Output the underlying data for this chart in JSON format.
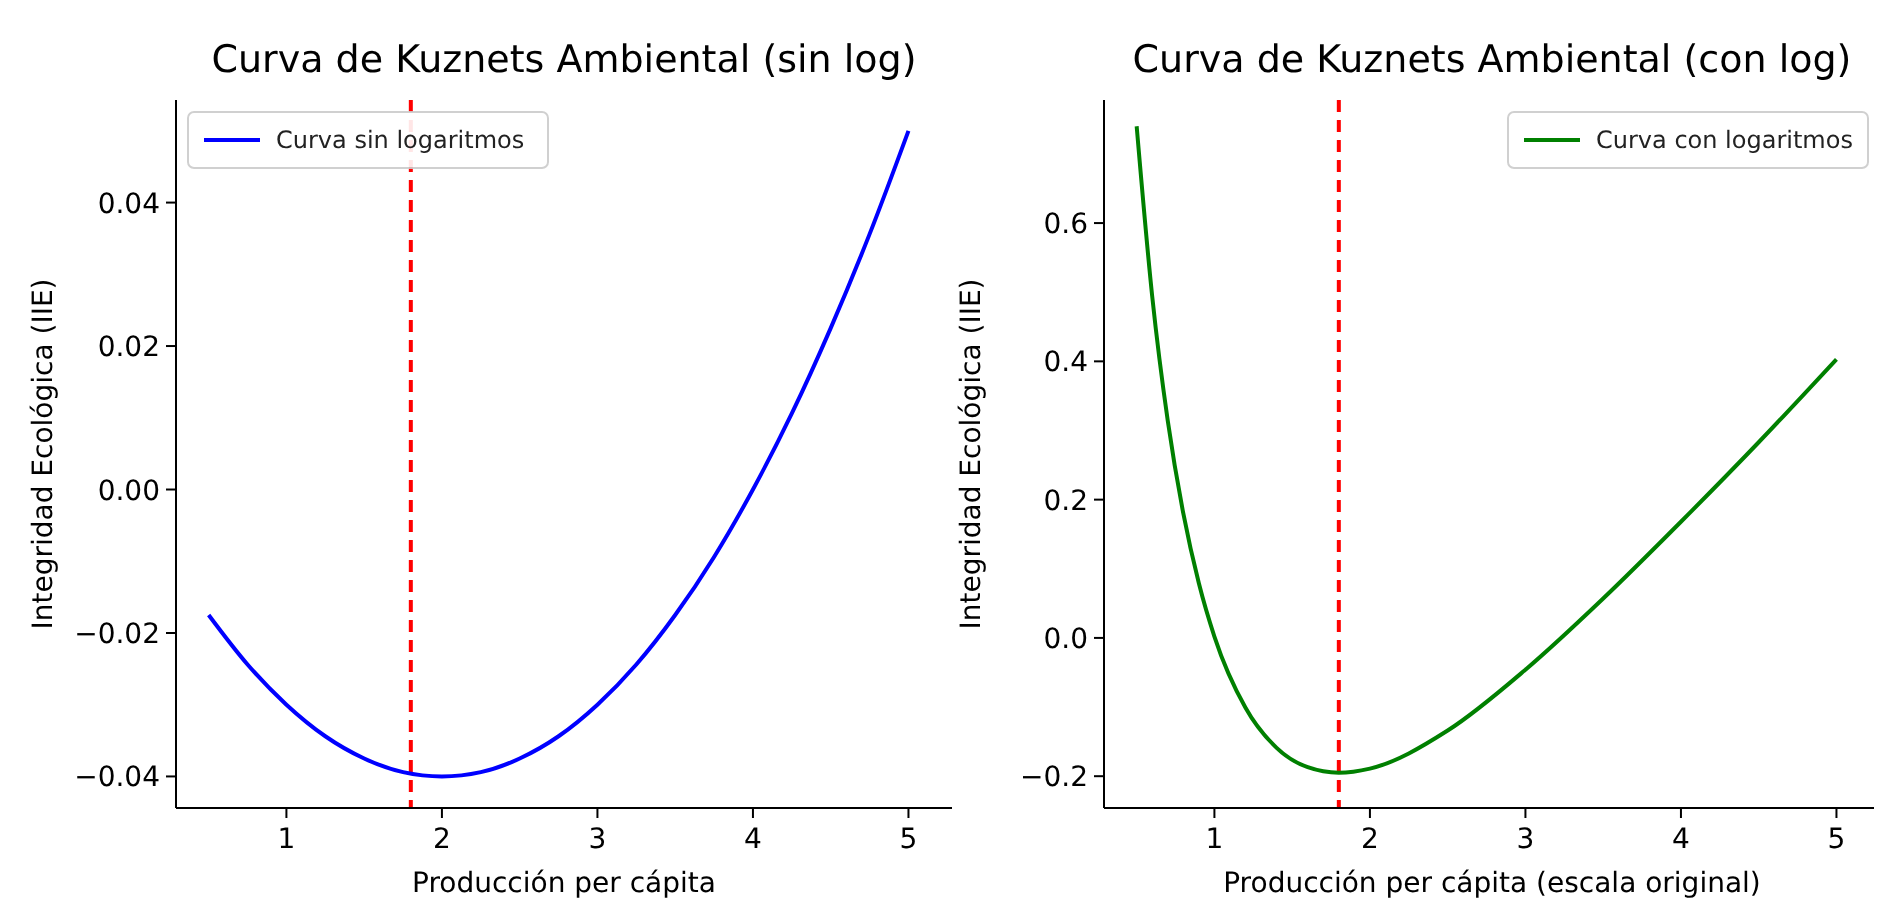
{
  "chart_data": [
    {
      "type": "line",
      "title": "Curva de Kuznets Ambiental (sin log)",
      "xlabel": "Producción per cápita",
      "ylabel": "Integridad Ecológica (IIE)",
      "x": [
        0.5,
        0.75,
        1,
        1.25,
        1.5,
        1.75,
        2,
        2.25,
        2.5,
        2.75,
        3,
        3.25,
        3.5,
        3.75,
        4,
        4.25,
        4.5,
        4.75,
        5
      ],
      "series": [
        {
          "name": "Curva sin logaritmos",
          "color": "#0000ff",
          "values": [
            -0.0175,
            -0.0244,
            -0.03,
            -0.0344,
            -0.0375,
            -0.0394,
            -0.04,
            -0.0394,
            -0.0375,
            -0.0344,
            -0.03,
            -0.0244,
            -0.0175,
            -0.0094,
            0,
            0.0106,
            0.0225,
            0.0356,
            0.05
          ]
        }
      ],
      "xlim": [
        0.29,
        5.28
      ],
      "xticks": [
        1,
        2,
        3,
        4,
        5
      ],
      "ylim": [
        -0.0444,
        0.0543
      ],
      "yticks": [
        {
          "value": -0.04,
          "label": "−0.04"
        },
        {
          "value": -0.02,
          "label": "−0.02"
        },
        {
          "value": 0,
          "label": "0.00"
        },
        {
          "value": 0.02,
          "label": "0.02"
        },
        {
          "value": 0.04,
          "label": "0.04"
        }
      ],
      "ref_lines": [
        {
          "axis": "x",
          "value": 1.8,
          "color": "#ff0000",
          "line_style": "dashed"
        }
      ],
      "legend": "top left",
      "grid": false,
      "line_style": "solid"
    },
    {
      "type": "line",
      "title": "Curva de Kuznets Ambiental (con log)",
      "xlabel": "Producción per cápita (escala original)",
      "ylabel": "Integridad Ecológica (IIE)",
      "x": [
        0.5,
        0.6,
        0.7,
        0.8,
        0.9,
        1,
        1.2,
        1.4,
        1.6,
        1.8,
        2,
        2.5,
        3,
        3.5,
        4,
        4.5,
        5
      ],
      "series": [
        {
          "name": "Curva con logaritmos",
          "color": "#008000",
          "values": [
            0.74,
            0.494,
            0.314,
            0.18,
            0.079,
            0.002,
            -0.101,
            -0.159,
            -0.187,
            -0.195,
            -0.189,
            -0.134,
            -0.046,
            0.057,
            0.168,
            0.283,
            0.403
          ]
        }
      ],
      "xlim": [
        0.29,
        5.28
      ],
      "xticks": [
        1,
        2,
        3,
        4,
        5
      ],
      "ylim": [
        -0.246,
        0.778
      ],
      "yticks": [
        {
          "value": -0.2,
          "label": "−0.2"
        },
        {
          "value": 0,
          "label": "0.0"
        },
        {
          "value": 0.2,
          "label": "0.2"
        },
        {
          "value": 0.4,
          "label": "0.4"
        },
        {
          "value": 0.6,
          "label": "0.6"
        }
      ],
      "ref_lines": [
        {
          "axis": "x",
          "value": 1.8,
          "color": "#ff0000",
          "line_style": "dashed"
        }
      ],
      "legend": "top right",
      "grid": false,
      "line_style": "solid"
    }
  ]
}
